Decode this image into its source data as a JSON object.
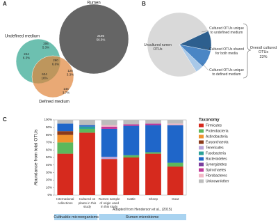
{
  "chart_data": [
    {
      "type": "venn",
      "panel_label": "A",
      "sets": [
        "Rumen",
        "Undefined medium",
        "Defined medium"
      ],
      "colors": [
        "#4a4a4a",
        "#2fa58e",
        "#e0843a"
      ],
      "regions": [
        {
          "count": 2195,
          "percent": 56.5,
          "percent_label": "56.5%"
        },
        {
          "count": 206,
          "percent": 5.3,
          "percent_label": "5.3%"
        },
        {
          "count": 244,
          "percent": 6.3,
          "percent_label": "6.3%"
        },
        {
          "count": 260,
          "percent": 6.6,
          "percent_label": "6.6%"
        },
        {
          "count": 624,
          "percent": 16,
          "percent_label": "16%"
        },
        {
          "count": 128,
          "percent": 3.3,
          "percent_label": "3.3%"
        },
        {
          "count": 144,
          "percent": 3.7,
          "percent_label": "3.7%"
        }
      ]
    },
    {
      "type": "pie",
      "panel_label": "B",
      "categories": [
        "Uncultured rumen OTUs",
        "Cultured OTUs unique to undefined medium",
        "Cultured OTUs shared for both media",
        "Cultured OTUs unique to defined medium"
      ],
      "values": [
        77,
        10,
        9,
        4
      ],
      "colors": [
        "#d9d9d9",
        "#2d5f8e",
        "#4a86c5",
        "#a8c8e8"
      ],
      "annotation": "Overall cultured OTUs",
      "annotation_value": 23,
      "annotation_value_label": "23%"
    },
    {
      "type": "bar",
      "stacked": true,
      "panel_label": "C",
      "categories": [
        "International collections",
        "Cultured on plates in this study",
        "Rumen sample of origin used in this study",
        "Cattle",
        "Sheep",
        "Goat"
      ],
      "ylabel": "Abundance from total OTUs",
      "ylim": [
        0,
        100
      ],
      "yticks": [
        {
          "value": 0,
          "label": "0%"
        },
        {
          "value": 10,
          "label": "10%"
        },
        {
          "value": 20,
          "label": "20%"
        },
        {
          "value": 30,
          "label": "30%"
        },
        {
          "value": 40,
          "label": "40%"
        },
        {
          "value": 50,
          "label": "50%"
        },
        {
          "value": 60,
          "label": "60%"
        },
        {
          "value": 70,
          "label": "70%"
        },
        {
          "value": 80,
          "label": "80%"
        },
        {
          "value": 90,
          "label": "90%"
        },
        {
          "value": 100,
          "label": "100%"
        }
      ],
      "legend_title": "Taxonomy",
      "series": [
        {
          "name": "Firmicutes",
          "color": "#d62a1e",
          "values": [
            55,
            83,
            48,
            50,
            55,
            38
          ]
        },
        {
          "name": "Proteobacteria",
          "color": "#5cb85c",
          "values": [
            15,
            5,
            0,
            3,
            2,
            5
          ]
        },
        {
          "name": "Actinobacteria",
          "color": "#f0922e",
          "values": [
            10,
            0,
            0,
            0,
            0,
            0
          ]
        },
        {
          "name": "Euryarchaeota",
          "color": "#8b3a1a",
          "values": [
            5,
            0,
            0,
            0,
            0,
            0
          ]
        },
        {
          "name": "Tenericutes",
          "color": "#b9a3d8",
          "values": [
            0,
            0,
            3,
            0,
            0,
            0
          ]
        },
        {
          "name": "Fusobacteria",
          "color": "#2aa198",
          "values": [
            0,
            3,
            0,
            0,
            0,
            0
          ]
        },
        {
          "name": "Bacteroidetes",
          "color": "#1f66c9",
          "values": [
            10,
            2,
            37,
            39,
            36,
            50
          ]
        },
        {
          "name": "Synergistetes",
          "color": "#7b3f9e",
          "values": [
            0,
            0,
            0,
            0,
            0,
            0
          ]
        },
        {
          "name": "Spirochaetes",
          "color": "#c0399a",
          "values": [
            0,
            0,
            3,
            2,
            2,
            0
          ]
        },
        {
          "name": "Fibrobacteres",
          "color": "#f2b8c6",
          "values": [
            0,
            0,
            2,
            0,
            0,
            2
          ]
        },
        {
          "name": "Unknown/other",
          "color": "#bdbdbd",
          "values": [
            5,
            7,
            7,
            6,
            5,
            5
          ]
        }
      ],
      "groups": [
        "Cultivable microorganisms",
        "Rumen microbiome"
      ],
      "group_color": "#a9d3f0",
      "annotation": "Adapted from Henderson et al., (2015)"
    }
  ]
}
